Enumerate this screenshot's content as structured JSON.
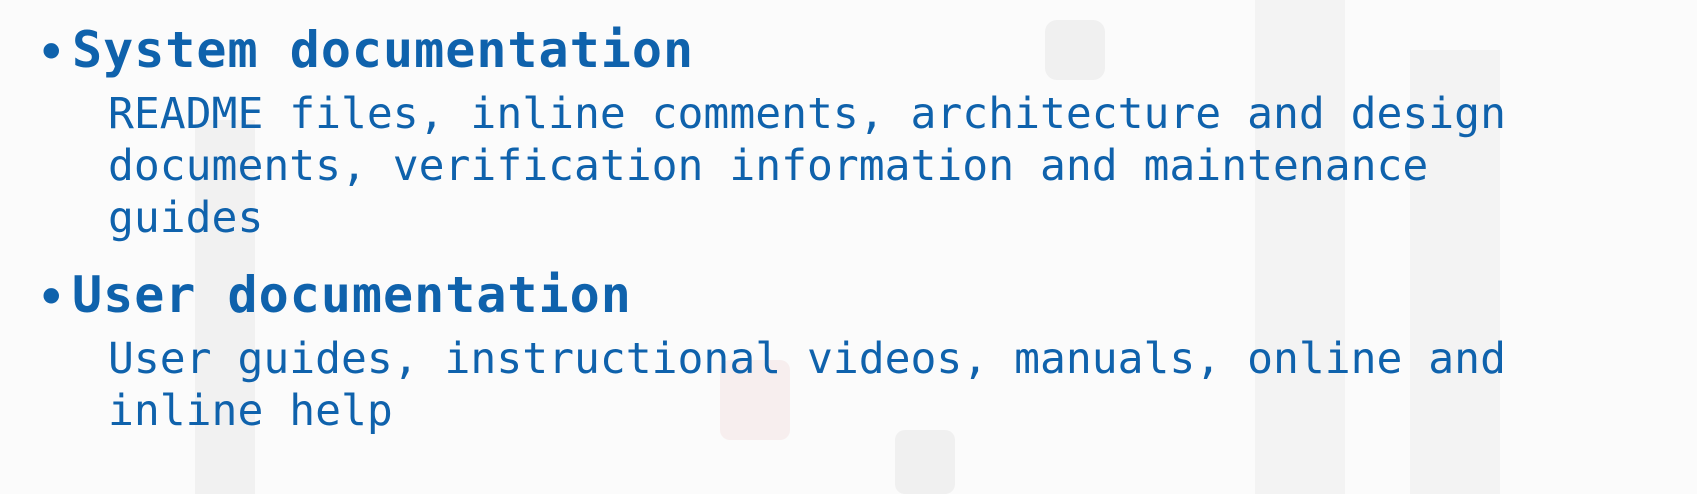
{
  "items": [
    {
      "heading": "System documentation",
      "description": "README files, inline comments, architecture and design\ndocuments, verification information and maintenance\nguides"
    },
    {
      "heading": "User documentation",
      "description": "User guides, instructional videos, manuals, online and\ninline help"
    }
  ],
  "bullet_glyph": "•",
  "colors": {
    "text": "#0f62ac",
    "background": "#fbfbfb"
  }
}
